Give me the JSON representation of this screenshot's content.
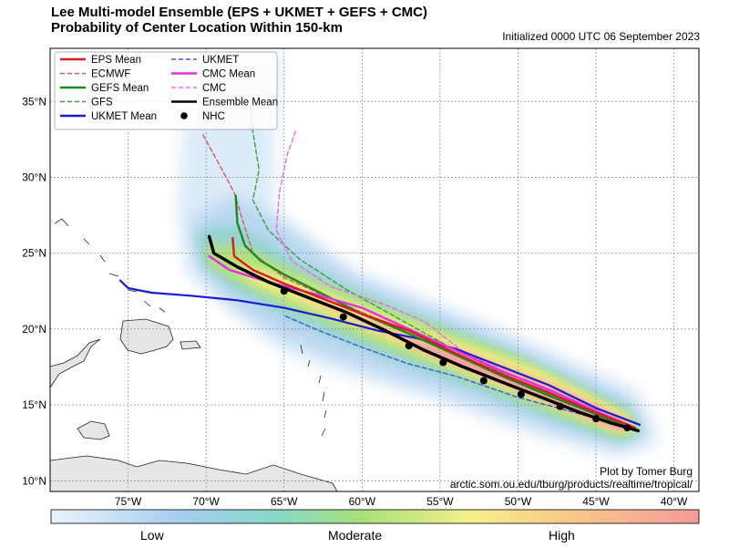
{
  "title_line1": "Lee Multi-model Ensemble (EPS + UKMET + GEFS + CMC)",
  "title_line2": "Probability of Center Location Within 150-km",
  "initialized": "Initialized 0000 UTC 06 September 2023",
  "credit_line1": "Plot by Tomer Burg",
  "credit_line2": "arctic.som.ou.edu/tburg/products/realtime/tropical/",
  "lon_ticks": [
    {
      "lon": -75,
      "label": "75°W"
    },
    {
      "lon": -70,
      "label": "70°W"
    },
    {
      "lon": -65,
      "label": "65°W"
    },
    {
      "lon": -60,
      "label": "60°W"
    },
    {
      "lon": -55,
      "label": "55°W"
    },
    {
      "lon": -50,
      "label": "50°W"
    },
    {
      "lon": -45,
      "label": "45°W"
    },
    {
      "lon": -40,
      "label": "40°W"
    }
  ],
  "lat_ticks": [
    {
      "lat": 10,
      "label": "10°N"
    },
    {
      "lat": 15,
      "label": "15°N"
    },
    {
      "lat": 20,
      "label": "20°N"
    },
    {
      "lat": 25,
      "label": "25°N"
    },
    {
      "lat": 30,
      "label": "30°N"
    },
    {
      "lat": 35,
      "label": "35°N"
    }
  ],
  "extent": {
    "lon_min": -80,
    "lon_max": -38.4,
    "lat_min": 9.3,
    "lat_max": 38.5
  },
  "colorbar": {
    "low": "Low",
    "moderate": "Moderate",
    "high": "High"
  },
  "legend": [
    {
      "label": "EPS Mean",
      "color": "#d62020",
      "style": "solid"
    },
    {
      "label": "UKMET",
      "color": "#3a5bd9",
      "style": "dashed"
    },
    {
      "label": "ECMWF",
      "color": "#d85a5a",
      "style": "dashed"
    },
    {
      "label": "CMC Mean",
      "color": "#e032e0",
      "style": "solid"
    },
    {
      "label": "GEFS Mean",
      "color": "#1e8a1e",
      "style": "solid"
    },
    {
      "label": "CMC",
      "color": "#e070e0",
      "style": "dashed"
    },
    {
      "label": "GFS",
      "color": "#3e9e3e",
      "style": "dashed"
    },
    {
      "label": "Ensemble Mean",
      "color": "#000000",
      "style": "solid"
    },
    {
      "label": "UKMET Mean",
      "color": "#1a1ad6",
      "style": "solid"
    },
    {
      "label": "NHC",
      "color": "#000000",
      "style": "dot"
    }
  ],
  "tracks": {
    "ensemble_mean": [
      [
        -42.3,
        13.3
      ],
      [
        -44,
        13.8
      ],
      [
        -46,
        14.5
      ],
      [
        -48.5,
        15.5
      ],
      [
        -51,
        16.5
      ],
      [
        -53.5,
        17.5
      ],
      [
        -56,
        18.6
      ],
      [
        -58.5,
        19.9
      ],
      [
        -61,
        21.1
      ],
      [
        -63.5,
        22.1
      ],
      [
        -66,
        23.1
      ],
      [
        -68,
        24.1
      ],
      [
        -69.5,
        25.0
      ],
      [
        -69.8,
        26.1
      ]
    ],
    "eps_mean": [
      [
        -42.5,
        13.5
      ],
      [
        -45,
        14.5
      ],
      [
        -48,
        15.8
      ],
      [
        -51,
        17.0
      ],
      [
        -54,
        18.4
      ],
      [
        -57,
        19.9
      ],
      [
        -60,
        21.0
      ],
      [
        -62.5,
        22.0
      ],
      [
        -65,
        23.0
      ],
      [
        -67,
        23.9
      ],
      [
        -68.2,
        24.8
      ],
      [
        -68.3,
        26.0
      ]
    ],
    "gefs_mean": [
      [
        -42.5,
        13.4
      ],
      [
        -45,
        14.4
      ],
      [
        -48,
        15.6
      ],
      [
        -51,
        16.9
      ],
      [
        -54,
        18.3
      ],
      [
        -57,
        19.7
      ],
      [
        -60,
        21.0
      ],
      [
        -62.5,
        22.3
      ],
      [
        -65,
        23.6
      ],
      [
        -66.5,
        24.5
      ],
      [
        -67.5,
        25.5
      ],
      [
        -68,
        27.0
      ],
      [
        -68.1,
        28.8
      ]
    ],
    "cmc_mean": [
      [
        -42.5,
        13.5
      ],
      [
        -45,
        14.6
      ],
      [
        -48,
        16.0
      ],
      [
        -51,
        17.2
      ],
      [
        -54,
        18.6
      ],
      [
        -57,
        20.0
      ],
      [
        -60,
        21.4
      ],
      [
        -63,
        22.3
      ],
      [
        -66,
        23.1
      ],
      [
        -68.5,
        23.9
      ],
      [
        -69.8,
        24.8
      ]
    ],
    "ukmet_mean": [
      [
        -42.2,
        13.7
      ],
      [
        -45,
        14.8
      ],
      [
        -48,
        16.3
      ],
      [
        -51,
        17.5
      ],
      [
        -54,
        18.7
      ],
      [
        -56.5,
        19.4
      ],
      [
        -59,
        19.9
      ],
      [
        -62,
        20.7
      ],
      [
        -65,
        21.4
      ],
      [
        -68,
        21.9
      ],
      [
        -71,
        22.2
      ],
      [
        -73.5,
        22.4
      ],
      [
        -75,
        22.7
      ],
      [
        -75.5,
        23.2
      ]
    ],
    "ecmwf": [
      [
        -42.5,
        13.4
      ],
      [
        -46,
        14.9
      ],
      [
        -50,
        16.5
      ],
      [
        -54,
        18.3
      ],
      [
        -58,
        20.2
      ],
      [
        -62,
        22.0
      ],
      [
        -65,
        23.4
      ],
      [
        -67,
        25
      ],
      [
        -67.6,
        27
      ],
      [
        -68.2,
        29
      ],
      [
        -69.5,
        31.5
      ],
      [
        -70.2,
        32.8
      ]
    ],
    "gfs": [
      [
        -42.8,
        13.4
      ],
      [
        -46,
        14.8
      ],
      [
        -50,
        16.6
      ],
      [
        -54,
        18.6
      ],
      [
        -57.5,
        20.6
      ],
      [
        -61,
        22.6
      ],
      [
        -64,
        24.6
      ],
      [
        -66,
        26.5
      ],
      [
        -67,
        28.5
      ],
      [
        -66.6,
        30.5
      ],
      [
        -67,
        33
      ],
      [
        -67.2,
        35
      ]
    ],
    "cmc": [
      [
        -42.4,
        13.3
      ],
      [
        -46,
        15.0
      ],
      [
        -50,
        16.8
      ],
      [
        -53.5,
        18.5
      ],
      [
        -56,
        20.5
      ],
      [
        -58.5,
        21.6
      ],
      [
        -62,
        22.8
      ],
      [
        -64.5,
        24.5
      ],
      [
        -65.5,
        26.5
      ],
      [
        -65.3,
        29
      ],
      [
        -64.8,
        31.5
      ],
      [
        -64.2,
        33.2
      ]
    ],
    "ukmet": [
      [
        -42.4,
        13.4
      ],
      [
        -46,
        14.4
      ],
      [
        -50,
        15.5
      ],
      [
        -54,
        16.9
      ],
      [
        -57,
        17.7
      ],
      [
        -60,
        18.8
      ],
      [
        -63,
        20.0
      ],
      [
        -65,
        20.9
      ]
    ],
    "nhc": [
      [
        -43,
        13.5
      ],
      [
        -45,
        14.1
      ],
      [
        -47.3,
        14.9
      ],
      [
        -49.8,
        15.7
      ],
      [
        -52.2,
        16.6
      ],
      [
        -54.8,
        17.8
      ],
      [
        -57,
        18.9
      ],
      [
        -61.2,
        20.8
      ],
      [
        -65,
        22.5
      ]
    ]
  }
}
